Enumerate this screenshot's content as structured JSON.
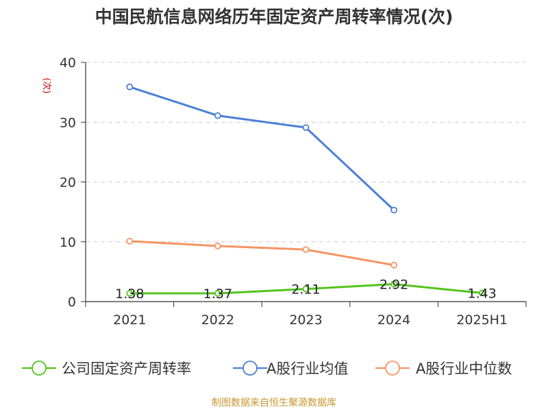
{
  "chart_data": {
    "type": "line",
    "title": "中国民航信息网络历年固定资产周转率情况(次)",
    "ylabel": "(次)",
    "xlabel": "",
    "categories": [
      "2021",
      "2022",
      "2023",
      "2024",
      "2025H1"
    ],
    "yticks": [
      "0",
      "10",
      "20",
      "30",
      "40"
    ],
    "ylim": [
      0,
      40
    ],
    "grid": true,
    "legend_position": "bottom",
    "series": [
      {
        "name": "公司固定资产周转率",
        "color": "#52c41a",
        "values": [
          1.38,
          1.37,
          2.11,
          2.92,
          1.43
        ],
        "labels": [
          "1.38",
          "1.37",
          "2.11",
          "2.92",
          "1.43"
        ]
      },
      {
        "name": "A股行业均值",
        "color": "#4a7fd9",
        "values": [
          35.9,
          31.1,
          29.1,
          15.3,
          null
        ]
      },
      {
        "name": "A股行业中位数",
        "color": "#f79363",
        "values": [
          10.1,
          9.3,
          8.7,
          6.1,
          null
        ]
      }
    ],
    "source": "制图数据来自恒生聚源数据库"
  },
  "colors": {
    "title": "#333333",
    "ylabel": "#cc0000",
    "source": "#c8962e",
    "axis": "#333333",
    "grid": "#cccccc",
    "marker_fill": "#ffffff"
  }
}
